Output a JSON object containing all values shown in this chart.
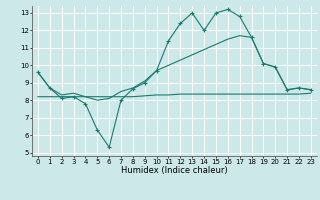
{
  "title": "",
  "xlabel": "Humidex (Indice chaleur)",
  "background_color": "#cce8e8",
  "grid_color": "#ffffff",
  "line_color": "#1a7a6e",
  "xlim": [
    -0.5,
    23.5
  ],
  "ylim": [
    4.8,
    13.4
  ],
  "yticks": [
    5,
    6,
    7,
    8,
    9,
    10,
    11,
    12,
    13
  ],
  "xticks": [
    0,
    1,
    2,
    3,
    4,
    5,
    6,
    7,
    8,
    9,
    10,
    11,
    12,
    13,
    14,
    15,
    16,
    17,
    18,
    19,
    20,
    21,
    22,
    23
  ],
  "line1_x": [
    0,
    1,
    2,
    3,
    4,
    5,
    6,
    7,
    8,
    9,
    10,
    11,
    12,
    13,
    14,
    15,
    16,
    17,
    18,
    19,
    20,
    21,
    22,
    23
  ],
  "line1_y": [
    9.6,
    8.7,
    8.1,
    8.2,
    7.8,
    6.3,
    5.3,
    8.0,
    8.65,
    9.0,
    9.7,
    11.4,
    12.4,
    13.0,
    12.0,
    13.0,
    13.2,
    12.8,
    11.6,
    10.1,
    9.9,
    8.6,
    8.7,
    8.6
  ],
  "line2_x": [
    0,
    1,
    2,
    3,
    4,
    5,
    6,
    7,
    8,
    9,
    10,
    11,
    12,
    13,
    14,
    15,
    16,
    17,
    18,
    19,
    20,
    21,
    22,
    23
  ],
  "line2_y": [
    9.6,
    8.7,
    8.3,
    8.4,
    8.2,
    8.0,
    8.1,
    8.5,
    8.7,
    9.1,
    9.7,
    10.0,
    10.3,
    10.6,
    10.9,
    11.2,
    11.5,
    11.7,
    11.6,
    10.1,
    9.9,
    8.6,
    8.7,
    8.6
  ],
  "line3_x": [
    0,
    1,
    2,
    3,
    4,
    5,
    6,
    7,
    8,
    9,
    10,
    11,
    12,
    13,
    14,
    15,
    16,
    17,
    18,
    19,
    20,
    21,
    22,
    23
  ],
  "line3_y": [
    8.2,
    8.2,
    8.2,
    8.2,
    8.2,
    8.2,
    8.2,
    8.2,
    8.2,
    8.25,
    8.3,
    8.3,
    8.35,
    8.35,
    8.35,
    8.35,
    8.35,
    8.35,
    8.35,
    8.35,
    8.35,
    8.35,
    8.35,
    8.4
  ],
  "figsize": [
    3.2,
    2.0
  ],
  "dpi": 100
}
